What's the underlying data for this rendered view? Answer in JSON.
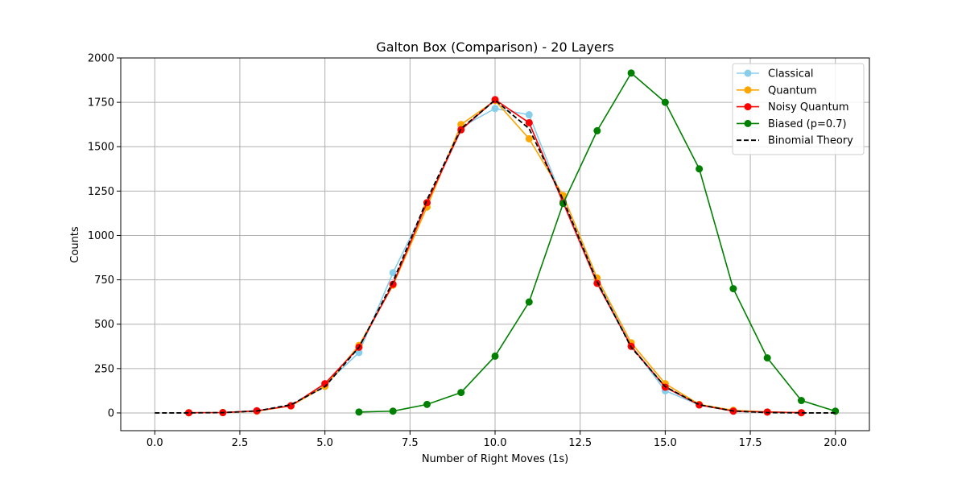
{
  "chart_data": {
    "type": "line",
    "title": "Galton Box (Comparison) - 20 Layers",
    "xlabel": "Number of Right Moves (1s)",
    "ylabel": "Counts",
    "xlim": [
      -1,
      21
    ],
    "ylim": [
      -100,
      2000
    ],
    "xticks": [
      0,
      2.5,
      5,
      7.5,
      10,
      12.5,
      15,
      17.5,
      20
    ],
    "xtick_labels": [
      "0.0",
      "2.5",
      "5.0",
      "7.5",
      "10.0",
      "12.5",
      "15.0",
      "17.5",
      "20.0"
    ],
    "yticks": [
      0,
      250,
      500,
      750,
      1000,
      1250,
      1500,
      1750,
      2000
    ],
    "ytick_labels": [
      "0",
      "250",
      "500",
      "750",
      "1000",
      "1250",
      "1500",
      "1750",
      "2000"
    ],
    "grid": true,
    "legend_position": "top-right",
    "series": [
      {
        "name": "Classical",
        "color": "#87ceeb",
        "style": "solid",
        "marker": true,
        "x": [
          1,
          2,
          3,
          4,
          5,
          6,
          7,
          8,
          9,
          10,
          11,
          12,
          13,
          14,
          15,
          16,
          17,
          18,
          19
        ],
        "y": [
          1,
          2,
          12,
          42,
          160,
          340,
          790,
          1180,
          1610,
          1715,
          1680,
          1195,
          745,
          380,
          125,
          45,
          10,
          5,
          1
        ]
      },
      {
        "name": "Quantum",
        "color": "#ffa500",
        "style": "solid",
        "marker": true,
        "x": [
          1,
          2,
          3,
          4,
          5,
          6,
          7,
          8,
          9,
          10,
          11,
          12,
          13,
          14,
          15,
          16,
          17,
          18,
          19
        ],
        "y": [
          1,
          2,
          10,
          40,
          150,
          380,
          720,
          1160,
          1625,
          1760,
          1545,
          1225,
          760,
          395,
          165,
          48,
          15,
          5,
          1
        ]
      },
      {
        "name": "Noisy Quantum",
        "color": "#ff0000",
        "style": "solid",
        "marker": true,
        "x": [
          1,
          2,
          3,
          4,
          5,
          6,
          7,
          8,
          9,
          10,
          11,
          12,
          13,
          14,
          15,
          16,
          17,
          18,
          19
        ],
        "y": [
          1,
          2,
          12,
          40,
          165,
          370,
          725,
          1185,
          1595,
          1765,
          1635,
          1185,
          730,
          375,
          145,
          45,
          10,
          5,
          1
        ]
      },
      {
        "name": "Biased (p=0.7)",
        "color": "#008000",
        "style": "solid",
        "marker": true,
        "x": [
          6,
          7,
          8,
          9,
          10,
          11,
          12,
          13,
          14,
          15,
          16,
          17,
          18,
          19,
          20
        ],
        "y": [
          5,
          10,
          48,
          115,
          320,
          625,
          1180,
          1590,
          1915,
          1750,
          1375,
          700,
          310,
          70,
          10
        ]
      },
      {
        "name": "Binomial Theory",
        "color": "#000000",
        "style": "dashed",
        "marker": false,
        "x": [
          0,
          1,
          2,
          3,
          4,
          5,
          6,
          7,
          8,
          9,
          10,
          11,
          12,
          13,
          14,
          15,
          16,
          17,
          18,
          19,
          20
        ],
        "y": [
          0,
          0.2,
          1.8,
          10.9,
          46.2,
          147.9,
          369.6,
          739.3,
          1201.3,
          1601.8,
          1762,
          1601.8,
          1201.3,
          739.3,
          369.6,
          147.9,
          46.2,
          10.9,
          1.8,
          0.2,
          0
        ]
      }
    ]
  }
}
